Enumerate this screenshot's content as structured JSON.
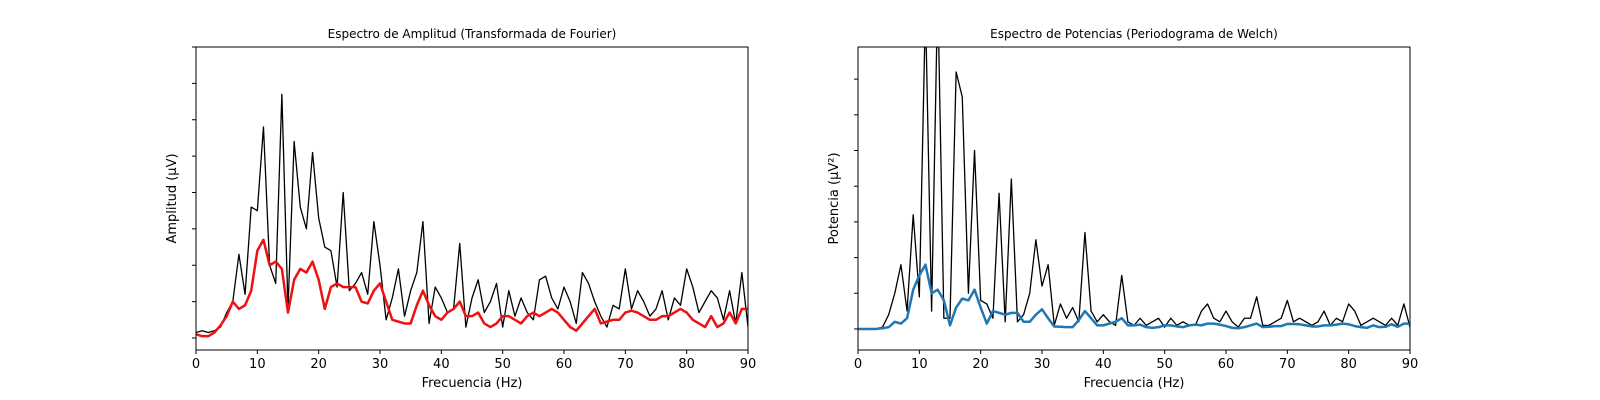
{
  "chart_data": [
    {
      "type": "line",
      "title": "Espectro de Amplitud (Transformada de Fourier)",
      "xlabel": "Frecuencia (Hz)",
      "ylabel": "Amplitud (μV)",
      "x": [
        0,
        1,
        2,
        3,
        4,
        5,
        6,
        7,
        8,
        9,
        10,
        11,
        12,
        13,
        14,
        15,
        16,
        17,
        18,
        19,
        20,
        21,
        22,
        23,
        24,
        25,
        26,
        27,
        28,
        29,
        30,
        31,
        32,
        33,
        34,
        35,
        36,
        37,
        38,
        39,
        40,
        41,
        42,
        43,
        44,
        45,
        46,
        47,
        48,
        49,
        50,
        51,
        52,
        53,
        54,
        55,
        56,
        57,
        58,
        59,
        60,
        61,
        62,
        63,
        64,
        65,
        66,
        67,
        68,
        69,
        70,
        71,
        72,
        73,
        74,
        75,
        76,
        77,
        78,
        79,
        80,
        81,
        82,
        83,
        84,
        85,
        86,
        87,
        88,
        89,
        90
      ],
      "xlim": [
        0,
        90
      ],
      "xticks": [
        0,
        10,
        20,
        30,
        40,
        50,
        60,
        70,
        80,
        90
      ],
      "ylim": [
        -0.33,
        8
      ],
      "yticks": [
        0,
        1,
        2,
        3,
        4,
        5,
        6,
        7,
        8
      ],
      "series": [
        {
          "color": "#000000",
          "values": [
            0.15,
            0.2,
            0.15,
            0.2,
            0.3,
            0.7,
            1.0,
            2.3,
            1.2,
            3.6,
            3.5,
            5.8,
            2.0,
            1.5,
            6.7,
            0.8,
            5.4,
            3.6,
            3.0,
            5.1,
            3.3,
            2.5,
            2.4,
            1.4,
            4.0,
            1.3,
            1.5,
            1.8,
            1.2,
            3.2,
            2.0,
            0.5,
            1.1,
            1.9,
            0.6,
            1.3,
            1.8,
            3.2,
            0.4,
            1.4,
            1.1,
            0.7,
            0.8,
            2.6,
            0.3,
            1.1,
            1.6,
            0.7,
            1.0,
            1.5,
            0.3,
            1.3,
            0.6,
            1.1,
            0.7,
            0.5,
            1.6,
            1.7,
            1.1,
            0.8,
            1.4,
            1.0,
            0.4,
            1.8,
            1.5,
            1.0,
            0.6,
            0.3,
            0.9,
            0.8,
            1.9,
            0.8,
            1.3,
            1.0,
            0.6,
            0.8,
            1.3,
            0.5,
            1.1,
            0.9,
            1.9,
            1.4,
            0.7,
            1.0,
            1.3,
            1.1,
            0.5,
            1.3,
            0.4,
            1.8,
            0.3
          ]
        },
        {
          "color": "#ee1111",
          "values": [
            0.1,
            0.05,
            0.05,
            0.15,
            0.35,
            0.6,
            1.0,
            0.8,
            0.9,
            1.3,
            2.4,
            2.7,
            2.0,
            2.1,
            1.9,
            0.7,
            1.6,
            1.9,
            1.8,
            2.1,
            1.6,
            0.8,
            1.4,
            1.5,
            1.4,
            1.4,
            1.4,
            1.0,
            0.95,
            1.3,
            1.5,
            1.0,
            0.5,
            0.45,
            0.4,
            0.4,
            0.9,
            1.3,
            0.9,
            0.6,
            0.5,
            0.7,
            0.8,
            1.0,
            0.6,
            0.6,
            0.7,
            0.4,
            0.3,
            0.4,
            0.6,
            0.6,
            0.5,
            0.4,
            0.6,
            0.7,
            0.6,
            0.7,
            0.8,
            0.7,
            0.5,
            0.3,
            0.2,
            0.4,
            0.6,
            0.8,
            0.4,
            0.45,
            0.5,
            0.5,
            0.7,
            0.75,
            0.7,
            0.6,
            0.5,
            0.5,
            0.6,
            0.6,
            0.7,
            0.8,
            0.7,
            0.5,
            0.4,
            0.3,
            0.6,
            0.3,
            0.4,
            0.7,
            0.4,
            0.8,
            0.8
          ]
        }
      ]
    },
    {
      "type": "line",
      "title": "Espectro de Potencias (Periodograma de Welch)",
      "xlabel": "Frecuencia (Hz)",
      "ylabel": "Potencia (μV²)",
      "x": [
        0,
        1,
        2,
        3,
        4,
        5,
        6,
        7,
        8,
        9,
        10,
        11,
        12,
        13,
        14,
        15,
        16,
        17,
        18,
        19,
        20,
        21,
        22,
        23,
        24,
        25,
        26,
        27,
        28,
        29,
        30,
        31,
        32,
        33,
        34,
        35,
        36,
        37,
        38,
        39,
        40,
        41,
        42,
        43,
        44,
        45,
        46,
        47,
        48,
        49,
        50,
        51,
        52,
        53,
        54,
        55,
        56,
        57,
        58,
        59,
        60,
        61,
        62,
        63,
        64,
        65,
        66,
        67,
        68,
        69,
        70,
        71,
        72,
        73,
        74,
        75,
        76,
        77,
        78,
        79,
        80,
        81,
        82,
        83,
        84,
        85,
        86,
        87,
        88,
        89,
        90
      ],
      "xlim": [
        0,
        90
      ],
      "xticks": [
        0,
        10,
        20,
        30,
        40,
        50,
        60,
        70,
        80,
        90
      ],
      "ylim": [
        -0.59,
        7.9
      ],
      "yticks": [
        0,
        1,
        2,
        3,
        4,
        5,
        6,
        7
      ],
      "series": [
        {
          "color": "#000000",
          "values": [
            0,
            0,
            0,
            0.01,
            0.05,
            0.4,
            1.0,
            1.8,
            0.5,
            3.2,
            0.9,
            9.0,
            0.5,
            9.5,
            0.3,
            0.3,
            7.2,
            6.5,
            1.0,
            5.0,
            0.8,
            0.7,
            0.3,
            3.8,
            0.2,
            4.2,
            0.2,
            0.4,
            1.0,
            2.5,
            1.2,
            1.8,
            0.1,
            0.7,
            0.3,
            0.6,
            0.2,
            2.7,
            0.5,
            0.2,
            0.4,
            0.2,
            0.1,
            1.5,
            0.2,
            0.1,
            0.3,
            0.1,
            0.2,
            0.3,
            0.05,
            0.3,
            0.1,
            0.2,
            0.1,
            0.1,
            0.5,
            0.7,
            0.3,
            0.2,
            0.5,
            0.2,
            0.05,
            0.3,
            0.3,
            0.9,
            0.1,
            0.1,
            0.2,
            0.3,
            0.8,
            0.2,
            0.3,
            0.2,
            0.1,
            0.2,
            0.5,
            0.1,
            0.3,
            0.2,
            0.7,
            0.5,
            0.1,
            0.2,
            0.3,
            0.2,
            0.1,
            0.3,
            0.1,
            0.7,
            0.05
          ]
        },
        {
          "color": "#1f77b4",
          "values": [
            0,
            0,
            0,
            0,
            0.02,
            0.05,
            0.2,
            0.15,
            0.3,
            1.1,
            1.5,
            1.8,
            1.0,
            1.1,
            0.8,
            0.1,
            0.6,
            0.85,
            0.8,
            1.1,
            0.6,
            0.15,
            0.5,
            0.45,
            0.4,
            0.45,
            0.45,
            0.2,
            0.2,
            0.4,
            0.55,
            0.3,
            0.07,
            0.06,
            0.05,
            0.05,
            0.25,
            0.5,
            0.3,
            0.1,
            0.1,
            0.15,
            0.2,
            0.3,
            0.1,
            0.1,
            0.12,
            0.05,
            0.03,
            0.05,
            0.1,
            0.1,
            0.07,
            0.05,
            0.1,
            0.12,
            0.1,
            0.15,
            0.15,
            0.12,
            0.08,
            0.03,
            0.02,
            0.05,
            0.1,
            0.15,
            0.05,
            0.06,
            0.08,
            0.08,
            0.14,
            0.14,
            0.13,
            0.1,
            0.07,
            0.07,
            0.1,
            0.1,
            0.12,
            0.15,
            0.13,
            0.08,
            0.05,
            0.03,
            0.1,
            0.05,
            0.06,
            0.13,
            0.06,
            0.15,
            0.15
          ]
        }
      ]
    }
  ]
}
